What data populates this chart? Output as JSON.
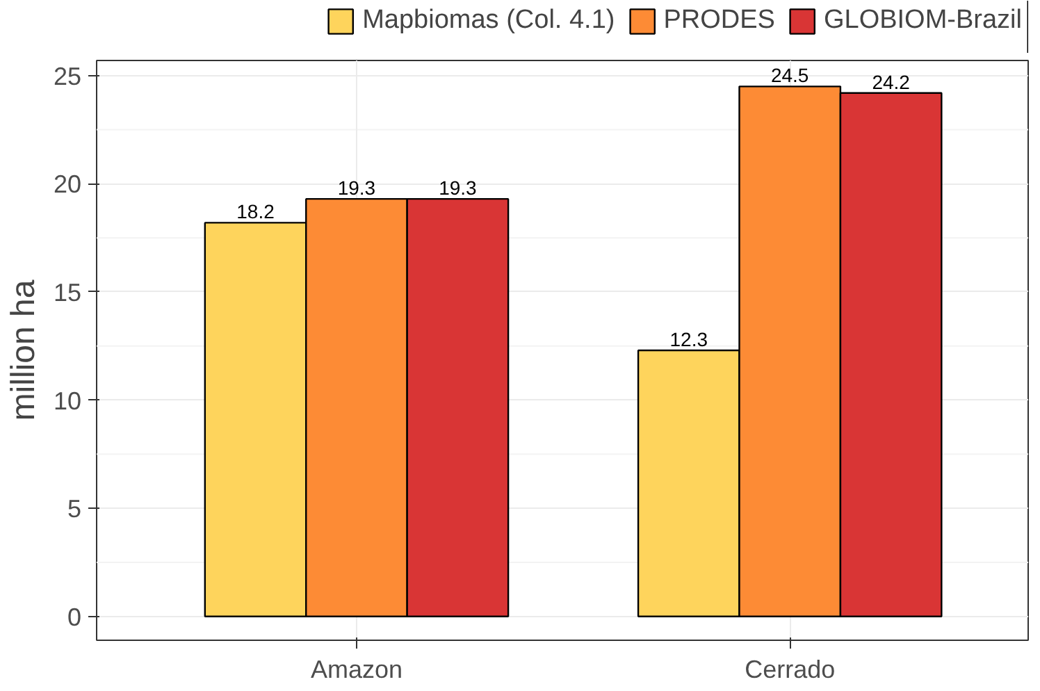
{
  "chart_data": {
    "type": "bar",
    "ylabel": "million ha",
    "categories": [
      "Amazon",
      "Cerrado"
    ],
    "series": [
      {
        "name": "Mapbiomas (Col. 4.1)",
        "color": "#fed45c",
        "values": [
          18.2,
          12.3
        ]
      },
      {
        "name": "PRODES",
        "color": "#fd8b35",
        "values": [
          19.3,
          24.5
        ]
      },
      {
        "name": "GLOBIOM-Brazil",
        "color": "#d93535",
        "values": [
          19.3,
          24.2
        ]
      }
    ],
    "ylim": [
      -1.1,
      25.7
    ],
    "yticks": [
      0,
      5,
      10,
      15,
      20,
      25
    ],
    "grid": true,
    "legend": "top right",
    "data_labels": true
  }
}
